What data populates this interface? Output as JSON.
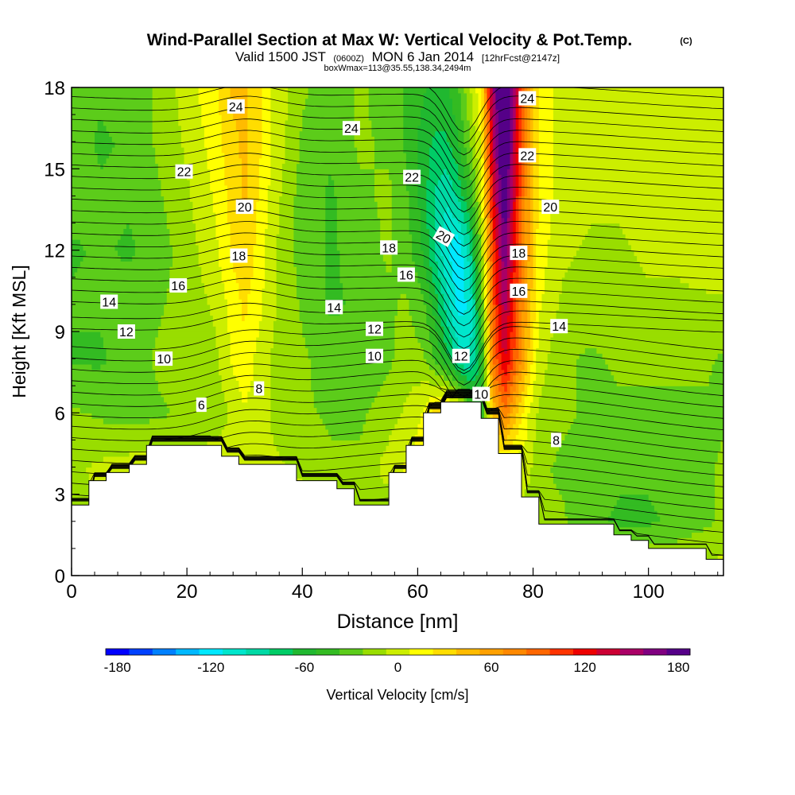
{
  "title": {
    "main": "Wind-Parallel Section at Max W: Vertical Velocity & Pot.Temp.",
    "copyright": "(C)",
    "valid_prefix": "Valid 1500 JST",
    "utc": "(0600Z)",
    "valid_date": "MON 6 Jan 2014",
    "forecast": "[12hrFcst@2147z]",
    "boxline": "boxWmax=113@35.55,138.34,2494m"
  },
  "chart_data": {
    "type": "heatmap",
    "xlabel": "Distance [nm]",
    "ylabel": "Height [Kft MSL]",
    "xlim": [
      0,
      113
    ],
    "ylim": [
      0,
      18
    ],
    "x_ticks": [
      0,
      20,
      40,
      60,
      80,
      100
    ],
    "y_ticks": [
      0,
      3,
      6,
      9,
      12,
      15,
      18
    ],
    "terrain": {
      "x": [
        0,
        3,
        3,
        6,
        6,
        10,
        10,
        13,
        13,
        26,
        26,
        29,
        29,
        39,
        39,
        46,
        46,
        49,
        49,
        55,
        55,
        58,
        58,
        61,
        61,
        64,
        64,
        71,
        71,
        74,
        74,
        78,
        78,
        81,
        81,
        94,
        94,
        97,
        97,
        100,
        100,
        110,
        110,
        113
      ],
      "y": [
        2.6,
        2.6,
        3.5,
        3.5,
        3.8,
        3.8,
        4.1,
        4.1,
        4.8,
        4.8,
        4.4,
        4.4,
        4.1,
        4.1,
        3.5,
        3.5,
        3.2,
        3.2,
        2.6,
        2.6,
        3.8,
        3.8,
        4.8,
        4.8,
        6.0,
        6.0,
        6.4,
        6.4,
        5.8,
        5.8,
        4.5,
        4.5,
        2.9,
        2.9,
        1.9,
        1.9,
        1.5,
        1.5,
        1.3,
        1.3,
        1.0,
        1.0,
        0.6,
        0.6
      ]
    },
    "vertical_velocity_field": {
      "x": [
        0,
        5,
        10,
        15,
        20,
        25,
        28,
        30,
        32,
        35,
        40,
        45,
        50,
        55,
        58,
        61,
        63,
        65,
        67,
        69,
        71,
        73,
        75,
        77,
        79,
        81,
        85,
        90,
        95,
        100,
        105,
        110,
        113
      ],
      "y": [
        0,
        2,
        4,
        6,
        8,
        10,
        12,
        14,
        16,
        18
      ],
      "values_cm_s": [
        [
          0,
          0,
          0,
          0,
          0,
          0,
          0,
          0,
          0,
          0,
          0,
          0,
          0,
          0,
          0,
          0,
          0,
          0,
          0,
          0,
          0,
          0,
          0,
          0,
          0,
          0,
          0,
          0,
          0,
          0,
          0,
          0,
          0
        ],
        [
          -20,
          0,
          0,
          0,
          0,
          0,
          0,
          0,
          0,
          0,
          0,
          0,
          -20,
          -20,
          0,
          0,
          0,
          0,
          0,
          0,
          0,
          0,
          0,
          0,
          -20,
          -20,
          -20,
          -35,
          -40,
          -40,
          -35,
          -25,
          -20
        ],
        [
          -10,
          -5,
          0,
          0,
          0,
          0,
          0,
          0,
          0,
          -5,
          -10,
          -20,
          -20,
          0,
          10,
          15,
          10,
          0,
          0,
          0,
          0,
          0,
          0,
          0,
          0,
          -20,
          -25,
          -30,
          -35,
          -35,
          -30,
          -25,
          -20
        ],
        [
          -20,
          -25,
          -30,
          -25,
          -20,
          -15,
          -5,
          5,
          0,
          -10,
          -20,
          -25,
          -25,
          -15,
          -5,
          10,
          30,
          40,
          20,
          -30,
          -60,
          40,
          80,
          40,
          10,
          -10,
          -20,
          -25,
          -25,
          -25,
          -25,
          -25,
          -25
        ],
        [
          -40,
          -40,
          -30,
          -20,
          -15,
          -10,
          10,
          20,
          5,
          -10,
          -20,
          -30,
          -35,
          -25,
          -15,
          -20,
          -40,
          -60,
          -90,
          -100,
          -60,
          80,
          130,
          90,
          40,
          0,
          -20,
          -25,
          -20,
          -20,
          -20,
          -20,
          -25
        ],
        [
          -35,
          -35,
          -30,
          -25,
          -15,
          -5,
          15,
          25,
          15,
          -5,
          -25,
          -40,
          -35,
          -25,
          -20,
          -35,
          -60,
          -90,
          -120,
          -110,
          -40,
          90,
          150,
          100,
          50,
          10,
          -10,
          -15,
          -10,
          -10,
          -10,
          -10,
          -10
        ],
        [
          -40,
          -35,
          -40,
          -30,
          -15,
          5,
          25,
          35,
          20,
          -5,
          -30,
          -40,
          -30,
          -20,
          -30,
          -55,
          -85,
          -110,
          -125,
          -90,
          -20,
          100,
          170,
          110,
          60,
          15,
          -5,
          -10,
          -10,
          -5,
          -5,
          0,
          0
        ],
        [
          -30,
          -35,
          -35,
          -25,
          -10,
          10,
          30,
          40,
          25,
          0,
          -30,
          -40,
          -25,
          -20,
          -35,
          -60,
          -85,
          -95,
          -80,
          -50,
          0,
          120,
          190,
          120,
          60,
          20,
          0,
          -5,
          -5,
          0,
          0,
          0,
          0
        ],
        [
          -30,
          -40,
          -35,
          -20,
          -5,
          15,
          35,
          40,
          30,
          5,
          -25,
          -35,
          -20,
          -25,
          -40,
          -60,
          -70,
          -70,
          -55,
          -25,
          10,
          140,
          210,
          130,
          60,
          20,
          0,
          0,
          0,
          0,
          0,
          0,
          0
        ],
        [
          -25,
          -35,
          -30,
          -20,
          0,
          20,
          40,
          40,
          30,
          5,
          -20,
          -30,
          -20,
          -30,
          -40,
          -50,
          -60,
          -55,
          -40,
          -10,
          20,
          150,
          220,
          140,
          60,
          20,
          0,
          0,
          0,
          0,
          0,
          0,
          0
        ]
      ]
    },
    "potential_temperature_contours": {
      "unit": "C",
      "labels": [
        {
          "text": "24",
          "x": 28.5,
          "y": 17.3
        },
        {
          "text": "24",
          "x": 48.5,
          "y": 16.5
        },
        {
          "text": "24",
          "x": 79,
          "y": 17.6
        },
        {
          "text": "22",
          "x": 19.5,
          "y": 14.9
        },
        {
          "text": "22",
          "x": 59,
          "y": 14.7
        },
        {
          "text": "22",
          "x": 79,
          "y": 15.5
        },
        {
          "text": "20",
          "x": 30,
          "y": 13.6
        },
        {
          "text": "20",
          "x": 64.5,
          "y": 12.5
        },
        {
          "text": "20",
          "x": 83,
          "y": 13.6
        },
        {
          "text": "18",
          "x": 29,
          "y": 11.8
        },
        {
          "text": "18",
          "x": 55,
          "y": 12.1
        },
        {
          "text": "18",
          "x": 77.5,
          "y": 11.9
        },
        {
          "text": "16",
          "x": 18.5,
          "y": 10.7
        },
        {
          "text": "16",
          "x": 58,
          "y": 11.1
        },
        {
          "text": "16",
          "x": 77.5,
          "y": 10.5
        },
        {
          "text": "14",
          "x": 6.5,
          "y": 10.1
        },
        {
          "text": "14",
          "x": 45.5,
          "y": 9.9
        },
        {
          "text": "14",
          "x": 84.5,
          "y": 9.2
        },
        {
          "text": "12",
          "x": 9.5,
          "y": 9.0
        },
        {
          "text": "12",
          "x": 52.5,
          "y": 9.1
        },
        {
          "text": "12",
          "x": 67.5,
          "y": 8.1
        },
        {
          "text": "10",
          "x": 16,
          "y": 8.0
        },
        {
          "text": "10",
          "x": 52.5,
          "y": 8.1
        },
        {
          "text": "10",
          "x": 71,
          "y": 6.7
        },
        {
          "text": "8",
          "x": 32.5,
          "y": 6.9
        },
        {
          "text": "8",
          "x": 84,
          "y": 5.0
        },
        {
          "text": "6",
          "x": 22.5,
          "y": 6.3
        }
      ]
    },
    "colorbar": {
      "label": "Vertical Velocity [cm/s]",
      "ticks": [
        -180,
        -120,
        -60,
        0,
        60,
        120,
        180
      ],
      "bins": [
        {
          "value": -180,
          "color": "#0000ff"
        },
        {
          "value": -165,
          "color": "#0040ff"
        },
        {
          "value": -150,
          "color": "#0080ff"
        },
        {
          "value": -135,
          "color": "#00b8ff"
        },
        {
          "value": -120,
          "color": "#00e8ff"
        },
        {
          "value": -105,
          "color": "#00e6cc"
        },
        {
          "value": -90,
          "color": "#00d9a5"
        },
        {
          "value": -75,
          "color": "#00cc66"
        },
        {
          "value": -60,
          "color": "#20b830"
        },
        {
          "value": -45,
          "color": "#33bb22"
        },
        {
          "value": -30,
          "color": "#5ccc1a"
        },
        {
          "value": -15,
          "color": "#99dd00"
        },
        {
          "value": 0,
          "color": "#ccee00"
        },
        {
          "value": 15,
          "color": "#ffff00"
        },
        {
          "value": 30,
          "color": "#ffdd00"
        },
        {
          "value": 45,
          "color": "#ffbb00"
        },
        {
          "value": 60,
          "color": "#ffa000"
        },
        {
          "value": 75,
          "color": "#ff8800"
        },
        {
          "value": 90,
          "color": "#ff6600"
        },
        {
          "value": 105,
          "color": "#ff3300"
        },
        {
          "value": 120,
          "color": "#ee0000"
        },
        {
          "value": 135,
          "color": "#cc0033"
        },
        {
          "value": 150,
          "color": "#aa0066"
        },
        {
          "value": 165,
          "color": "#800080"
        },
        {
          "value": 180,
          "color": "#550088"
        }
      ]
    }
  }
}
